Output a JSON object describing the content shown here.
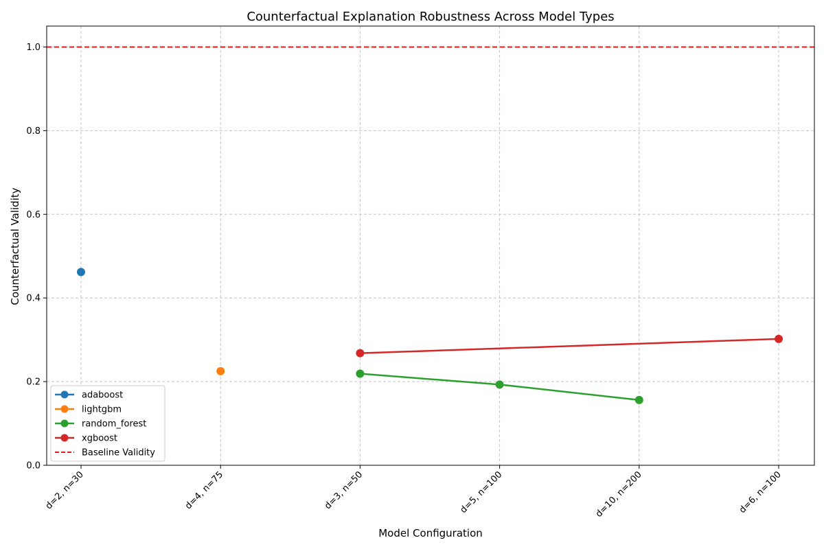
{
  "chart_data": {
    "type": "line",
    "title": "Counterfactual Explanation Robustness Across Model Types",
    "xlabel": "Model Configuration",
    "ylabel": "Counterfactual Validity",
    "categories": [
      "d=2, n=30",
      "d=4, n=75",
      "d=3, n=50",
      "d=5, n=100",
      "d=10, n=200",
      "d=6, n=100"
    ],
    "ylim": [
      0,
      1.05
    ],
    "yticks": [
      "0.0",
      "0.2",
      "0.4",
      "0.6",
      "0.8",
      "1.0"
    ],
    "grid": true,
    "legend_position": "lower-left",
    "series": [
      {
        "name": "adaboost",
        "color": "#1f77b4",
        "points": [
          {
            "x": "d=2, n=30",
            "y": 0.462
          }
        ]
      },
      {
        "name": "lightgbm",
        "color": "#ff7f0e",
        "points": [
          {
            "x": "d=4, n=75",
            "y": 0.225
          }
        ]
      },
      {
        "name": "random_forest",
        "color": "#2ca02c",
        "points": [
          {
            "x": "d=3, n=50",
            "y": 0.219
          },
          {
            "x": "d=5, n=100",
            "y": 0.193
          },
          {
            "x": "d=10, n=200",
            "y": 0.156
          }
        ]
      },
      {
        "name": "xgboost",
        "color": "#d62728",
        "points": [
          {
            "x": "d=3, n=50",
            "y": 0.268
          },
          {
            "x": "d=6, n=100",
            "y": 0.302
          }
        ]
      }
    ],
    "reference_line": {
      "name": "Baseline Validity",
      "y": 1.0,
      "color": "#e31a1c",
      "style": "dashed"
    }
  }
}
